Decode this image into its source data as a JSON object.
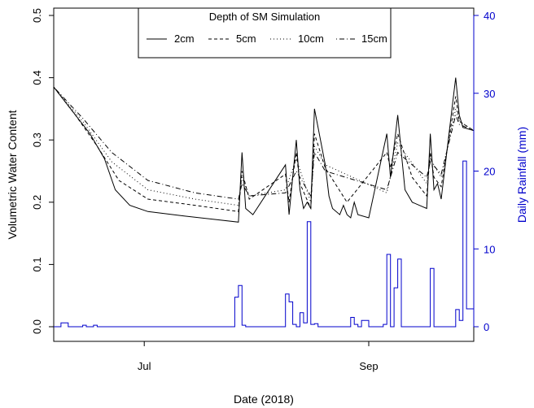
{
  "chart_data": {
    "type": "line",
    "title": "",
    "xlabel": "Date (2018)",
    "ylabel": "Volumetric Water Content",
    "y2label": "Daily Rainfall (mm)",
    "xlim": [
      "2018-06-06",
      "2018-09-30"
    ],
    "ylim": [
      0,
      0.5
    ],
    "y2lim": [
      0,
      40
    ],
    "x_ticks": [
      {
        "date": "2018-07-01",
        "label": "Jul"
      },
      {
        "date": "2018-09-01",
        "label": "Sep"
      }
    ],
    "y_ticks": [
      "0.0",
      "0.1",
      "0.2",
      "0.3",
      "0.4",
      "0.5"
    ],
    "y2_ticks": [
      "0",
      "10",
      "20",
      "30",
      "40"
    ],
    "grid": false,
    "legend": {
      "title": "Depth of SM Simulation",
      "placement": "top-center",
      "entries": [
        "2cm",
        "5cm",
        "10cm",
        "15cm"
      ]
    },
    "series": [
      {
        "name": "2cm",
        "axis": "left",
        "x": [
          "2018-06-06",
          "2018-06-12",
          "2018-06-16",
          "2018-06-20",
          "2018-06-23",
          "2018-06-27",
          "2018-07-02",
          "2018-07-12",
          "2018-07-27",
          "2018-07-28",
          "2018-07-29",
          "2018-07-31",
          "2018-08-09",
          "2018-08-10",
          "2018-08-12",
          "2018-08-13",
          "2018-08-14",
          "2018-08-15",
          "2018-08-16",
          "2018-08-17",
          "2018-08-20",
          "2018-08-21",
          "2018-08-22",
          "2018-08-24",
          "2018-08-25",
          "2018-08-26",
          "2018-08-27",
          "2018-08-28",
          "2018-08-29",
          "2018-09-01",
          "2018-09-06",
          "2018-09-07",
          "2018-09-09",
          "2018-09-10",
          "2018-09-11",
          "2018-09-13",
          "2018-09-17",
          "2018-09-18",
          "2018-09-19",
          "2018-09-20",
          "2018-09-21",
          "2018-09-25",
          "2018-09-26",
          "2018-09-27",
          "2018-09-30"
        ],
        "y": [
          0.385,
          0.34,
          0.31,
          0.27,
          0.22,
          0.195,
          0.185,
          0.178,
          0.168,
          0.28,
          0.19,
          0.18,
          0.26,
          0.18,
          0.3,
          0.22,
          0.19,
          0.2,
          0.19,
          0.35,
          0.26,
          0.21,
          0.19,
          0.18,
          0.195,
          0.18,
          0.175,
          0.2,
          0.18,
          0.175,
          0.31,
          0.24,
          0.34,
          0.28,
          0.22,
          0.2,
          0.19,
          0.31,
          0.22,
          0.23,
          0.205,
          0.4,
          0.34,
          0.32,
          0.315
        ]
      },
      {
        "name": "5cm",
        "axis": "left",
        "x": [
          "2018-06-06",
          "2018-06-12",
          "2018-06-18",
          "2018-06-24",
          "2018-07-02",
          "2018-07-15",
          "2018-07-27",
          "2018-07-28",
          "2018-07-30",
          "2018-08-09",
          "2018-08-10",
          "2018-08-12",
          "2018-08-13",
          "2018-08-16",
          "2018-08-17",
          "2018-08-20",
          "2018-08-26",
          "2018-09-06",
          "2018-09-07",
          "2018-09-09",
          "2018-09-13",
          "2018-09-17",
          "2018-09-18",
          "2018-09-19",
          "2018-09-21",
          "2018-09-25",
          "2018-09-26",
          "2018-09-30"
        ],
        "y": [
          0.385,
          0.34,
          0.29,
          0.235,
          0.205,
          0.195,
          0.185,
          0.25,
          0.205,
          0.245,
          0.2,
          0.28,
          0.23,
          0.19,
          0.31,
          0.255,
          0.2,
          0.28,
          0.255,
          0.31,
          0.24,
          0.21,
          0.28,
          0.24,
          0.225,
          0.37,
          0.33,
          0.315
        ]
      },
      {
        "name": "10cm",
        "axis": "left",
        "x": [
          "2018-06-06",
          "2018-06-14",
          "2018-06-22",
          "2018-07-02",
          "2018-07-15",
          "2018-07-27",
          "2018-07-28",
          "2018-07-30",
          "2018-08-09",
          "2018-08-12",
          "2018-08-16",
          "2018-08-17",
          "2018-08-20",
          "2018-09-06",
          "2018-09-09",
          "2018-09-17",
          "2018-09-18",
          "2018-09-21",
          "2018-09-25",
          "2018-09-26",
          "2018-09-30"
        ],
        "y": [
          0.385,
          0.33,
          0.265,
          0.22,
          0.205,
          0.195,
          0.24,
          0.21,
          0.22,
          0.27,
          0.2,
          0.29,
          0.26,
          0.215,
          0.295,
          0.23,
          0.27,
          0.24,
          0.35,
          0.33,
          0.315
        ]
      },
      {
        "name": "15cm",
        "axis": "left",
        "x": [
          "2018-06-06",
          "2018-06-14",
          "2018-06-22",
          "2018-07-02",
          "2018-07-15",
          "2018-07-27",
          "2018-07-28",
          "2018-07-30",
          "2018-08-09",
          "2018-08-12",
          "2018-08-16",
          "2018-08-17",
          "2018-08-20",
          "2018-09-06",
          "2018-09-09",
          "2018-09-17",
          "2018-09-18",
          "2018-09-21",
          "2018-09-25",
          "2018-09-26",
          "2018-09-30"
        ],
        "y": [
          0.385,
          0.335,
          0.28,
          0.235,
          0.215,
          0.205,
          0.23,
          0.21,
          0.215,
          0.25,
          0.21,
          0.28,
          0.25,
          0.22,
          0.28,
          0.24,
          0.265,
          0.245,
          0.34,
          0.325,
          0.315
        ]
      },
      {
        "name": "rainfall",
        "axis": "right",
        "kind": "step",
        "x": [
          "2018-06-06",
          "2018-06-08",
          "2018-06-09",
          "2018-06-10",
          "2018-06-14",
          "2018-06-15",
          "2018-06-17",
          "2018-06-18",
          "2018-07-26",
          "2018-07-27",
          "2018-07-28",
          "2018-07-29",
          "2018-07-30",
          "2018-07-31",
          "2018-08-09",
          "2018-08-10",
          "2018-08-11",
          "2018-08-12",
          "2018-08-13",
          "2018-08-14",
          "2018-08-15",
          "2018-08-16",
          "2018-08-17",
          "2018-08-18",
          "2018-08-19",
          "2018-08-20",
          "2018-08-21",
          "2018-08-27",
          "2018-08-28",
          "2018-08-29",
          "2018-08-30",
          "2018-08-31",
          "2018-09-01",
          "2018-09-02",
          "2018-09-03",
          "2018-09-04",
          "2018-09-05",
          "2018-09-06",
          "2018-09-07",
          "2018-09-08",
          "2018-09-09",
          "2018-09-10",
          "2018-09-11",
          "2018-09-12",
          "2018-09-18",
          "2018-09-19",
          "2018-09-20",
          "2018-09-25",
          "2018-09-26",
          "2018-09-27",
          "2018-09-28"
        ],
        "y": [
          0,
          0.5,
          0.5,
          0,
          0.2,
          0,
          0.2,
          0,
          3.8,
          5.3,
          0.2,
          0,
          0,
          0,
          4.2,
          3.2,
          0.3,
          0,
          1.8,
          0.5,
          13.5,
          0.3,
          0.4,
          0,
          0,
          0,
          0,
          1.2,
          0.3,
          0,
          0.8,
          0.8,
          0,
          0,
          0,
          0,
          0.3,
          9.3,
          0,
          5,
          8.7,
          0,
          0,
          0,
          7.5,
          0,
          0,
          2.2,
          0.8,
          21.3,
          2.3
        ]
      }
    ]
  }
}
